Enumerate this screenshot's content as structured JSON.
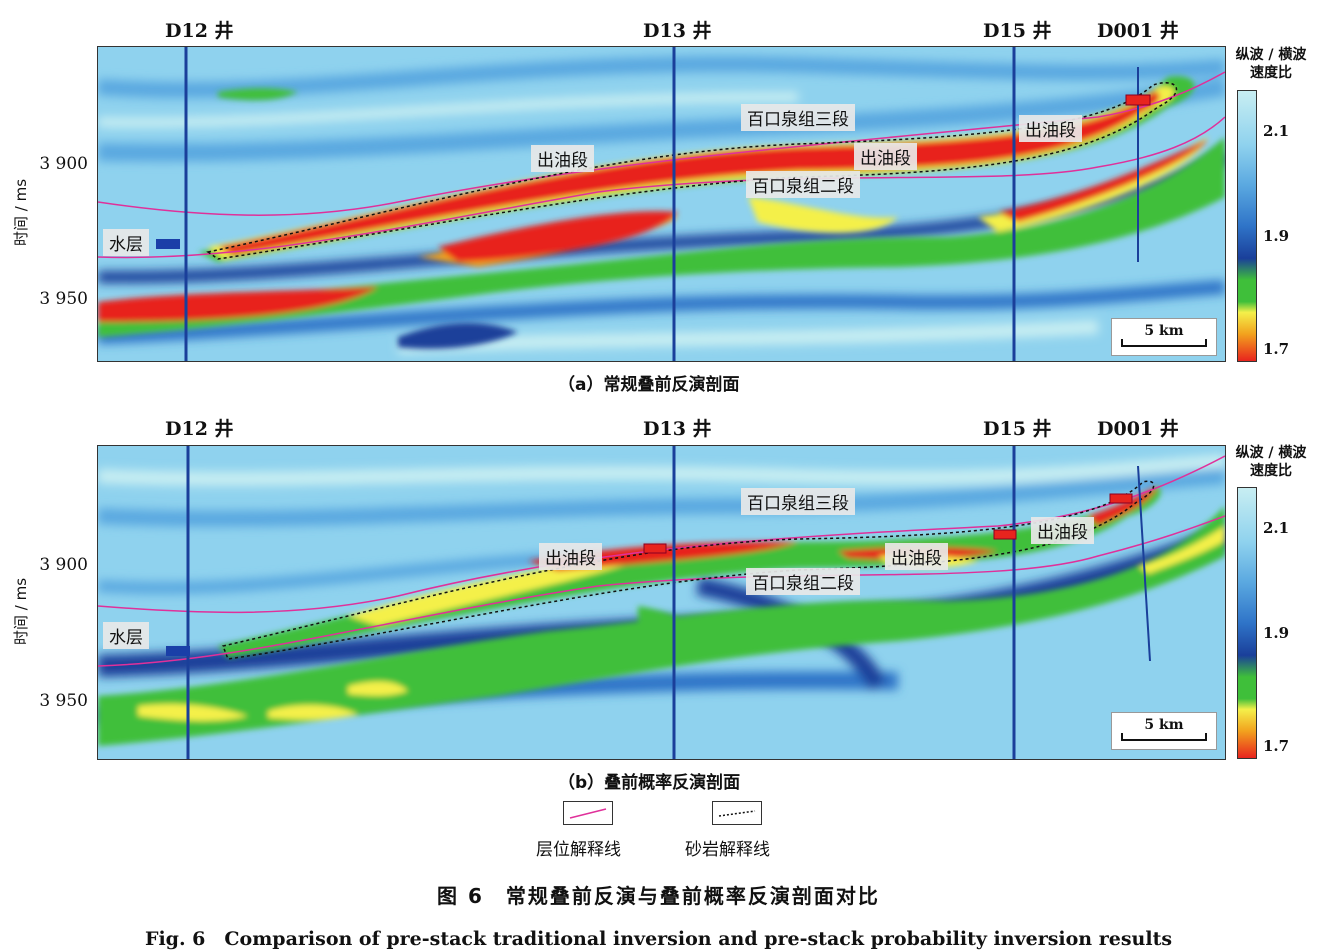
{
  "panel_a": {
    "wells": [
      "D12 井",
      "D13 井",
      "D15 井",
      "D001 井"
    ],
    "y_ticks": [
      "3 900",
      "3 950"
    ],
    "ylabel": "时间 / ms",
    "tags": {
      "third": "百口泉组三段",
      "second": "百口泉组二段",
      "oil1": "出油段",
      "oil2": "出油段",
      "oil3": "出油段",
      "water": "水层"
    },
    "scale": "5 km",
    "caption": "（a）常规叠前反演剖面"
  },
  "panel_b": {
    "wells": [
      "D12 井",
      "D13 井",
      "D15 井",
      "D001 井"
    ],
    "y_ticks": [
      "3 900",
      "3 950"
    ],
    "ylabel": "时间 / ms",
    "tags": {
      "third": "百口泉组三段",
      "second": "百口泉组二段",
      "oil1": "出油段",
      "oil2": "出油段",
      "oil3": "出油段",
      "water": "水层"
    },
    "scale": "5 km",
    "caption": "（b）叠前概率反演剖面"
  },
  "colorbar": {
    "title_line1": "纵波 / 横波",
    "title_line2": "速度比",
    "ticks": [
      "2.1",
      "1.9",
      "1.7"
    ],
    "colors": [
      "#c8eef2",
      "#8fd2ee",
      "#5aa8e0",
      "#2f74c8",
      "#1a3f9a",
      "#3fbf3a",
      "#f4f04a",
      "#f2a21e",
      "#e8241e"
    ]
  },
  "legend": {
    "horizon": "层位解释线",
    "sand": "砂岩解释线"
  },
  "figure": {
    "caption_cn": "图 6　常规叠前反演与叠前概率反演剖面对比",
    "caption_en": "Fig. 6　Comparison of pre-stack traditional inversion and pre-stack probability inversion results"
  }
}
